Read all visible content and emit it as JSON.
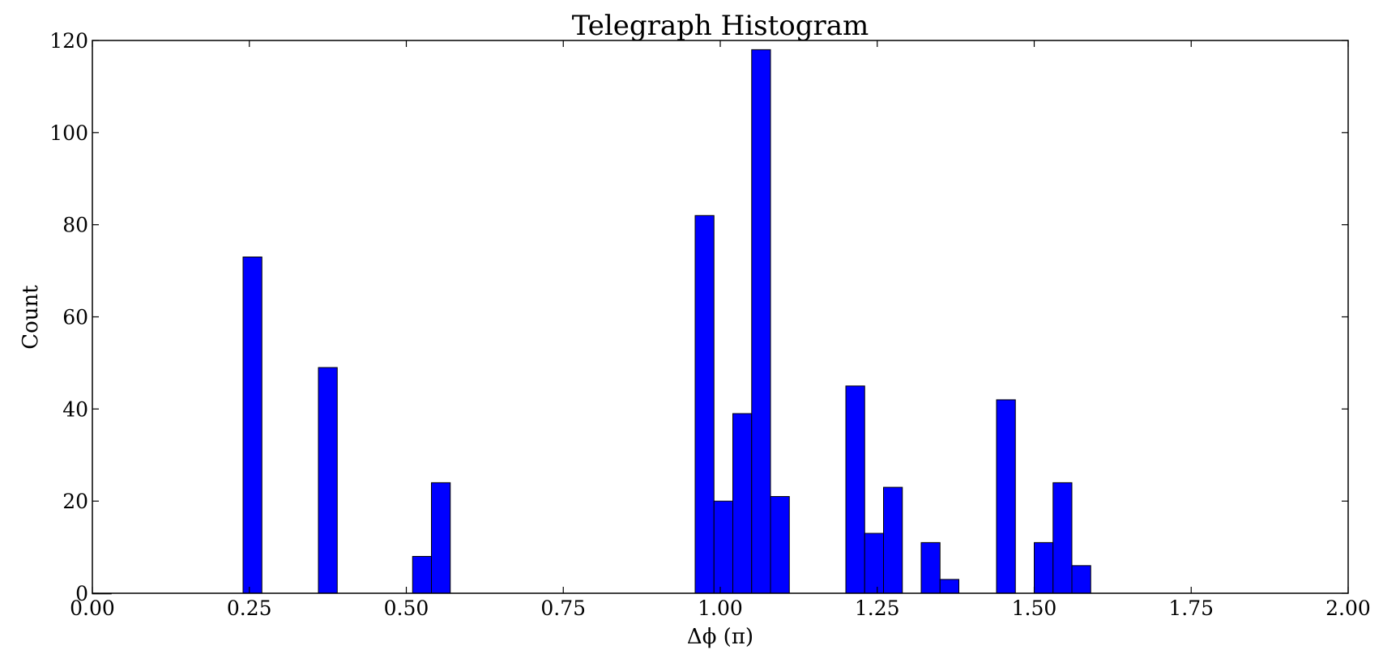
{
  "chart_data": {
    "type": "bar",
    "title": "Telegraph Histogram",
    "xlabel": "Δϕ (π)",
    "ylabel": "Count",
    "xlim": [
      0,
      2
    ],
    "ylim": [
      0,
      120
    ],
    "xticks": [
      "0.00",
      "0.25",
      "0.50",
      "0.75",
      "1.00",
      "1.25",
      "1.50",
      "1.75",
      "2.00"
    ],
    "yticks": [
      "0",
      "20",
      "40",
      "60",
      "80",
      "100",
      "120"
    ],
    "grid": false,
    "bar_color": "#0000ff",
    "edge_color": "#000000",
    "bin_width": 0.03,
    "bins": [
      {
        "x": 0.0,
        "count": 0
      },
      {
        "x": 0.24,
        "count": 73
      },
      {
        "x": 0.36,
        "count": 49
      },
      {
        "x": 0.51,
        "count": 8
      },
      {
        "x": 0.54,
        "count": 24
      },
      {
        "x": 0.96,
        "count": 82
      },
      {
        "x": 0.99,
        "count": 20
      },
      {
        "x": 1.02,
        "count": 39
      },
      {
        "x": 1.05,
        "count": 118
      },
      {
        "x": 1.08,
        "count": 21
      },
      {
        "x": 1.2,
        "count": 45
      },
      {
        "x": 1.23,
        "count": 13
      },
      {
        "x": 1.26,
        "count": 23
      },
      {
        "x": 1.32,
        "count": 11
      },
      {
        "x": 1.35,
        "count": 3
      },
      {
        "x": 1.44,
        "count": 42
      },
      {
        "x": 1.5,
        "count": 11
      },
      {
        "x": 1.53,
        "count": 24
      },
      {
        "x": 1.56,
        "count": 6
      }
    ]
  }
}
